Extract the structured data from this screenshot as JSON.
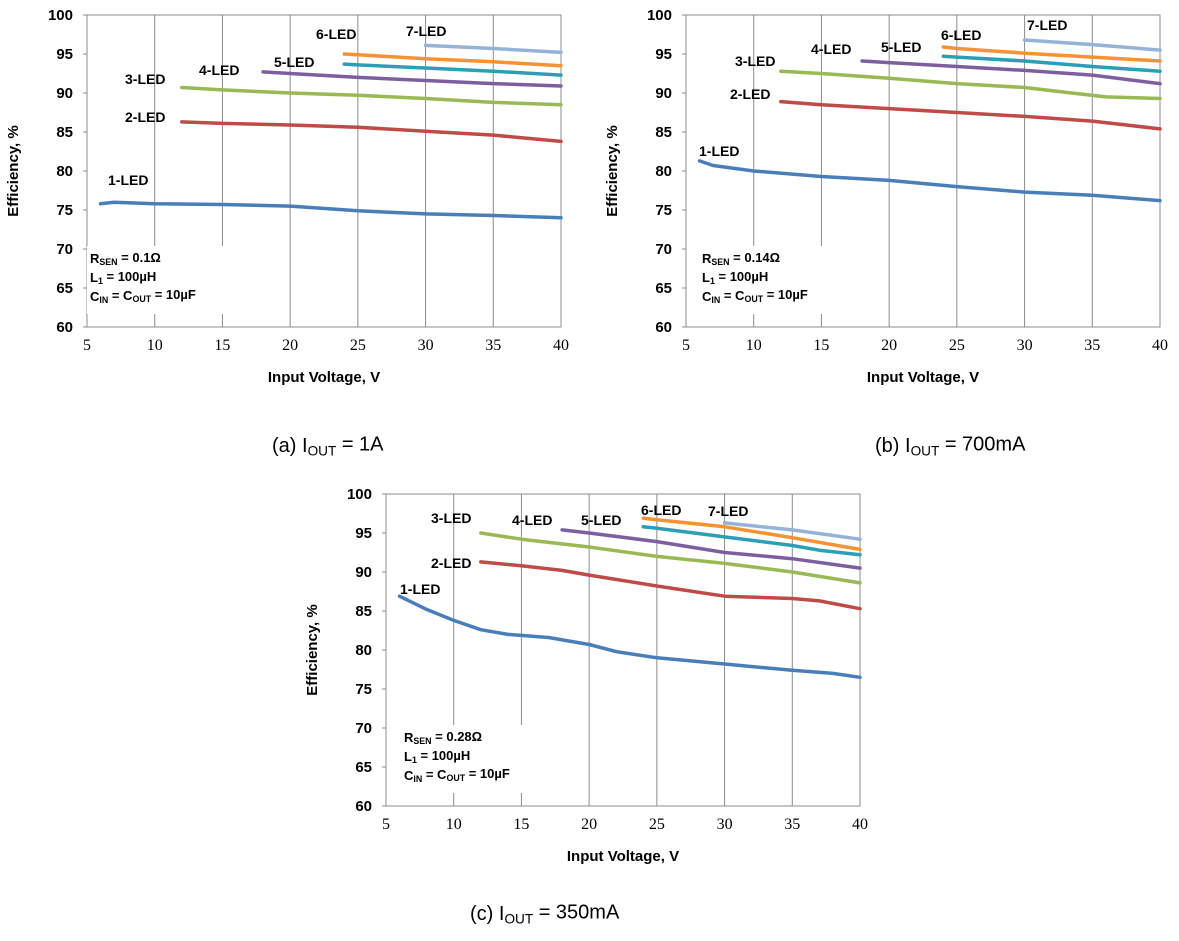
{
  "colors": {
    "1-LED": "#4a7ebb",
    "2-LED": "#be4b48",
    "3-LED": "#98b954",
    "4-LED": "#7d5fa0",
    "5-LED": "#2c9fb5",
    "6-LED": "#f59234",
    "7-LED": "#95b3d7"
  },
  "chart_data": [
    {
      "id": "a",
      "type": "line",
      "caption": {
        "prefix": "(a) I",
        "sub": "OUT",
        "suffix": " = 1A"
      },
      "xlabel": "Input Voltage, V",
      "ylabel": "Efficiency, %",
      "xlim": [
        5,
        40
      ],
      "ylim": [
        60,
        100
      ],
      "xticks": [
        "5",
        "10",
        "15",
        "20",
        "25",
        "30",
        "35",
        "40"
      ],
      "yticks": [
        "60",
        "65",
        "70",
        "75",
        "80",
        "85",
        "90",
        "95",
        "100"
      ],
      "grid": "vertical",
      "annotation": [
        {
          "main": "R",
          "sub": "SEN",
          "rest": " = 0.1Ω"
        },
        {
          "main": "L",
          "sub": "1",
          "rest": " = 100µH"
        },
        {
          "main": "C",
          "sub": "IN",
          "rest": " = C",
          "sub2": "OUT",
          "rest2": " = 10µF"
        }
      ],
      "series": [
        {
          "name": "1-LED",
          "x": [
            6,
            7,
            10,
            15,
            20,
            25,
            30,
            35,
            40
          ],
          "y": [
            75.8,
            76.0,
            75.8,
            75.7,
            75.5,
            74.9,
            74.5,
            74.3,
            74.0
          ]
        },
        {
          "name": "2-LED",
          "x": [
            12,
            15,
            20,
            25,
            30,
            35,
            40
          ],
          "y": [
            86.3,
            86.1,
            85.9,
            85.6,
            85.1,
            84.6,
            83.8
          ]
        },
        {
          "name": "3-LED",
          "x": [
            12,
            15,
            20,
            25,
            30,
            35,
            40
          ],
          "y": [
            90.7,
            90.4,
            90.0,
            89.7,
            89.3,
            88.8,
            88.5
          ]
        },
        {
          "name": "4-LED",
          "x": [
            18,
            20,
            25,
            30,
            35,
            40
          ],
          "y": [
            92.7,
            92.5,
            92.0,
            91.6,
            91.2,
            90.9
          ]
        },
        {
          "name": "5-LED",
          "x": [
            24,
            25,
            30,
            35,
            40
          ],
          "y": [
            93.7,
            93.6,
            93.2,
            92.8,
            92.3
          ]
        },
        {
          "name": "6-LED",
          "x": [
            24,
            25,
            30,
            35,
            40
          ],
          "y": [
            95.0,
            94.9,
            94.4,
            94.0,
            93.5
          ]
        },
        {
          "name": "7-LED",
          "x": [
            30,
            35,
            40
          ],
          "y": [
            96.1,
            95.7,
            95.2
          ]
        }
      ]
    },
    {
      "id": "b",
      "type": "line",
      "caption": {
        "prefix": "(b) I",
        "sub": "OUT",
        "suffix": " = 700mA"
      },
      "xlabel": "Input Voltage, V",
      "ylabel": "Efficiency, %",
      "xlim": [
        5,
        40
      ],
      "ylim": [
        60,
        100
      ],
      "xticks": [
        "5",
        "10",
        "15",
        "20",
        "25",
        "30",
        "35",
        "40"
      ],
      "yticks": [
        "60",
        "65",
        "70",
        "75",
        "80",
        "85",
        "90",
        "95",
        "100"
      ],
      "grid": "vertical",
      "annotation": [
        {
          "main": "R",
          "sub": "SEN",
          "rest": " = 0.14Ω"
        },
        {
          "main": "L",
          "sub": "1",
          "rest": " = 100µH"
        },
        {
          "main": "C",
          "sub": "IN",
          "rest": " = C",
          "sub2": "OUT",
          "rest2": " = 10µF"
        }
      ],
      "series": [
        {
          "name": "1-LED",
          "x": [
            6,
            7,
            10,
            15,
            20,
            25,
            30,
            35,
            40
          ],
          "y": [
            81.3,
            80.7,
            80.0,
            79.3,
            78.8,
            78.0,
            77.3,
            76.9,
            76.2
          ]
        },
        {
          "name": "2-LED",
          "x": [
            12,
            15,
            20,
            25,
            30,
            35,
            40
          ],
          "y": [
            88.9,
            88.5,
            88.0,
            87.5,
            87.0,
            86.4,
            85.4
          ]
        },
        {
          "name": "3-LED",
          "x": [
            12,
            15,
            20,
            25,
            30,
            33,
            36,
            40
          ],
          "y": [
            92.8,
            92.5,
            91.9,
            91.2,
            90.7,
            90.1,
            89.5,
            89.3
          ]
        },
        {
          "name": "4-LED",
          "x": [
            18,
            20,
            25,
            30,
            35,
            40
          ],
          "y": [
            94.1,
            93.9,
            93.4,
            92.9,
            92.3,
            91.2
          ]
        },
        {
          "name": "5-LED",
          "x": [
            24,
            25,
            30,
            35,
            40
          ],
          "y": [
            94.7,
            94.6,
            94.1,
            93.4,
            92.8
          ]
        },
        {
          "name": "6-LED",
          "x": [
            24,
            25,
            30,
            35,
            40
          ],
          "y": [
            95.9,
            95.7,
            95.1,
            94.6,
            94.1
          ]
        },
        {
          "name": "7-LED",
          "x": [
            30,
            35,
            40
          ],
          "y": [
            96.8,
            96.2,
            95.5
          ]
        }
      ]
    },
    {
      "id": "c",
      "type": "line",
      "caption": {
        "prefix": "(c) I",
        "sub": "OUT",
        "suffix": " = 350mA"
      },
      "xlabel": "Input Voltage, V",
      "ylabel": "Efficiency, %",
      "xlim": [
        5,
        40
      ],
      "ylim": [
        60,
        100
      ],
      "xticks": [
        "5",
        "10",
        "15",
        "20",
        "25",
        "30",
        "35",
        "40"
      ],
      "yticks": [
        "60",
        "65",
        "70",
        "75",
        "80",
        "85",
        "90",
        "95",
        "100"
      ],
      "grid": "vertical",
      "annotation": [
        {
          "main": "R",
          "sub": "SEN",
          "rest": " = 0.28Ω"
        },
        {
          "main": "L",
          "sub": "1",
          "rest": " = 100µH"
        },
        {
          "main": "C",
          "sub": "IN",
          "rest": " = C",
          "sub2": "OUT",
          "rest2": " = 10µF"
        }
      ],
      "series": [
        {
          "name": "1-LED",
          "x": [
            6,
            8,
            10,
            12,
            14,
            17,
            20,
            22,
            25,
            30,
            35,
            38,
            40
          ],
          "y": [
            86.9,
            85.2,
            83.8,
            82.6,
            82.0,
            81.6,
            80.7,
            79.8,
            79.0,
            78.2,
            77.4,
            77.0,
            76.5
          ]
        },
        {
          "name": "2-LED",
          "x": [
            12,
            15,
            18,
            20,
            25,
            30,
            35,
            37,
            40
          ],
          "y": [
            91.3,
            90.8,
            90.2,
            89.6,
            88.2,
            86.9,
            86.6,
            86.3,
            85.3
          ]
        },
        {
          "name": "3-LED",
          "x": [
            12,
            15,
            20,
            25,
            30,
            35,
            40
          ],
          "y": [
            95.0,
            94.2,
            93.2,
            92.0,
            91.1,
            90.0,
            88.6
          ]
        },
        {
          "name": "4-LED",
          "x": [
            18,
            20,
            25,
            30,
            35,
            40
          ],
          "y": [
            95.4,
            95.0,
            93.9,
            92.5,
            91.7,
            90.5
          ]
        },
        {
          "name": "5-LED",
          "x": [
            24,
            25,
            30,
            35,
            37,
            40
          ],
          "y": [
            95.8,
            95.6,
            94.5,
            93.4,
            92.8,
            92.2
          ]
        },
        {
          "name": "6-LED",
          "x": [
            24,
            25,
            30,
            35,
            40
          ],
          "y": [
            96.9,
            96.7,
            95.8,
            94.4,
            92.9
          ]
        },
        {
          "name": "7-LED",
          "x": [
            30,
            35,
            40
          ],
          "y": [
            96.3,
            95.4,
            94.2
          ]
        }
      ]
    }
  ]
}
